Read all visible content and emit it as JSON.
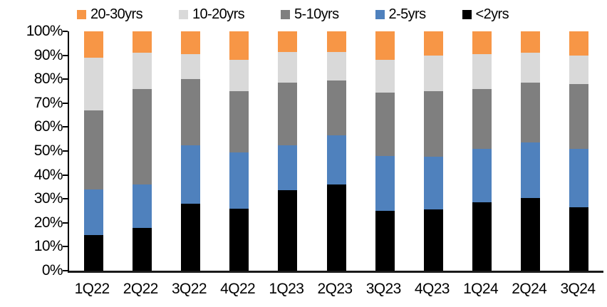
{
  "chart_data": {
    "type": "bar",
    "subtype": "stacked-100-percent",
    "title": "",
    "xlabel": "",
    "ylabel": "",
    "categories": [
      "1Q22",
      "2Q22",
      "3Q22",
      "4Q22",
      "1Q23",
      "2Q23",
      "3Q23",
      "4Q23",
      "1Q24",
      "2Q24",
      "3Q24"
    ],
    "series": [
      {
        "name": "<2yrs",
        "color": "#000000",
        "values": [
          15,
          18,
          28,
          26,
          33.5,
          36,
          25,
          25.5,
          28.5,
          30.5,
          26.5
        ]
      },
      {
        "name": "2-5yrs",
        "color": "#4F81BD",
        "values": [
          19,
          18,
          24.5,
          23.5,
          19,
          20.5,
          23,
          22,
          22.5,
          23,
          24.5
        ]
      },
      {
        "name": "5-10yrs",
        "color": "#7F7F7F",
        "values": [
          33,
          40,
          27.5,
          25.5,
          26,
          23,
          26.5,
          27.5,
          25,
          25,
          27
        ]
      },
      {
        "name": "10-20yrs",
        "color": "#D9D9D9",
        "values": [
          22,
          15,
          10.5,
          13,
          13,
          12,
          13.5,
          15,
          14.5,
          12.5,
          12
        ]
      },
      {
        "name": "20-30yrs",
        "color": "#F79646",
        "values": [
          11,
          9,
          9.5,
          12,
          8.5,
          8.5,
          12,
          10,
          9.5,
          9,
          10
        ]
      }
    ],
    "legend": {
      "position": "top",
      "order": [
        "20-30yrs",
        "10-20yrs",
        "5-10yrs",
        "2-5yrs",
        "<2yrs"
      ]
    },
    "ylim": [
      0,
      100
    ],
    "yticks": [
      "0%",
      "10%",
      "20%",
      "30%",
      "40%",
      "50%",
      "60%",
      "70%",
      "80%",
      "90%",
      "100%"
    ],
    "grid": false,
    "axis_color": "#000000"
  }
}
